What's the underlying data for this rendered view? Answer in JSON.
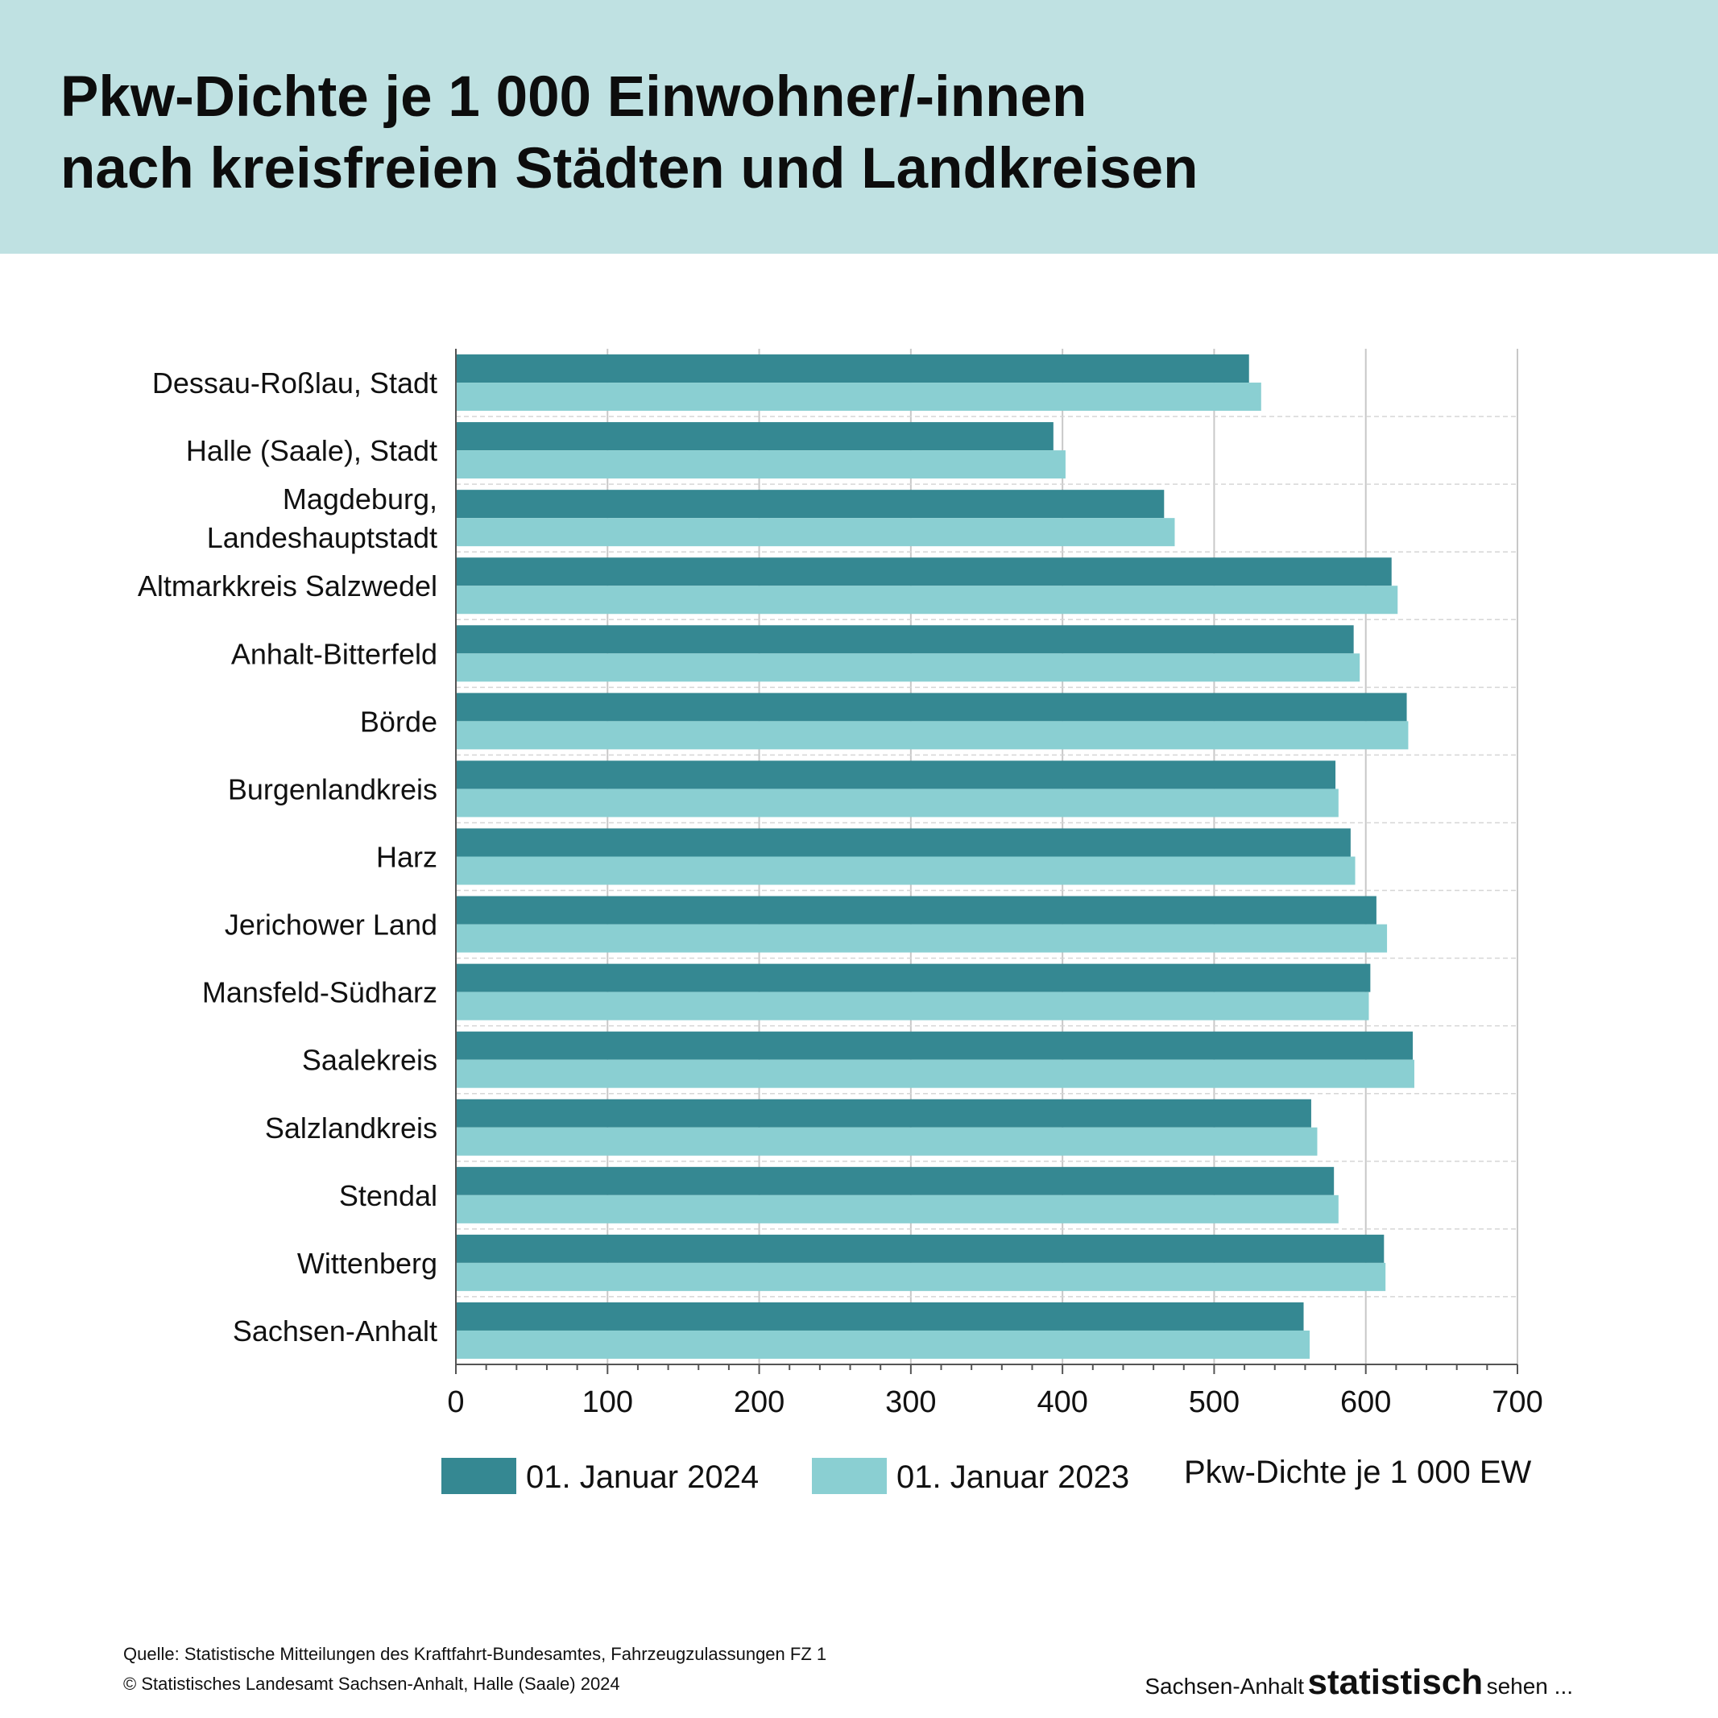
{
  "header": {
    "title_line1": "Pkw-Dichte je 1 000 Einwohner/-innen",
    "title_line2": "nach kreisfreien Städten und Landkreisen"
  },
  "colors": {
    "header_background": "#bfe1e2",
    "series_2024": "#358892",
    "series_2023": "#8acfd2",
    "grid": "#c8c8c8"
  },
  "chart_data": {
    "type": "bar",
    "orientation": "horizontal",
    "title": "Pkw-Dichte je 1 000 Einwohner/-innen nach kreisfreien Städten und Landkreisen",
    "xlabel": "Pkw-Dichte je 1 000 EW",
    "ylabel": "",
    "xlim": [
      0,
      700
    ],
    "x_ticks": [
      0,
      100,
      200,
      300,
      400,
      500,
      600,
      700
    ],
    "grid": true,
    "legend_position": "bottom",
    "categories": [
      [
        "Dessau-Roßlau, Stadt"
      ],
      [
        "Halle (Saale), Stadt"
      ],
      [
        "Magdeburg,",
        "Landeshauptstadt"
      ],
      [
        "Altmarkkreis Salzwedel"
      ],
      [
        "Anhalt-Bitterfeld"
      ],
      [
        "Börde"
      ],
      [
        "Burgenlandkreis"
      ],
      [
        "Harz"
      ],
      [
        "Jerichower Land"
      ],
      [
        "Mansfeld-Südharz"
      ],
      [
        "Saalekreis"
      ],
      [
        "Salzlandkreis"
      ],
      [
        "Stendal"
      ],
      [
        "Wittenberg"
      ],
      [
        "Sachsen-Anhalt"
      ]
    ],
    "series": [
      {
        "name": "01. Januar 2024",
        "color": "#358892",
        "values": [
          523,
          394,
          467,
          617,
          592,
          627,
          580,
          590,
          607,
          603,
          631,
          564,
          579,
          612,
          559
        ]
      },
      {
        "name": "01. Januar 2023",
        "color": "#8acfd2",
        "values": [
          531,
          402,
          474,
          621,
          596,
          628,
          582,
          593,
          614,
          602,
          632,
          568,
          582,
          613,
          563
        ]
      }
    ]
  },
  "footer": {
    "source": "Quelle: Statistische Mitteilungen des Kraftfahrt-Bundesamtes, Fahrzeugzulassungen FZ 1",
    "copyright": "© Statistisches Landesamt Sachsen-Anhalt, Halle (Saale) 2024",
    "brand_prefix": "Sachsen-Anhalt",
    "brand_main": "statistisch",
    "brand_suffix": "sehen ..."
  }
}
